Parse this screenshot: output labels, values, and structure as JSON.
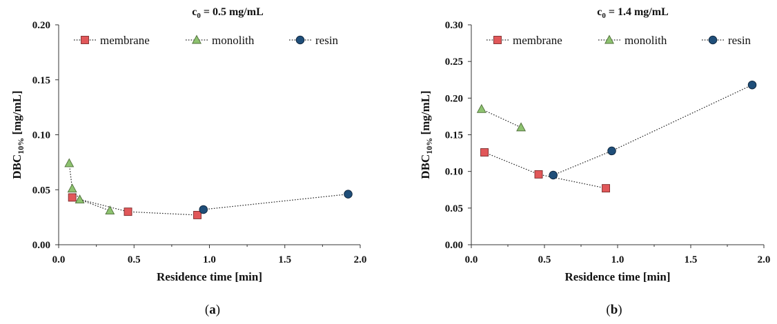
{
  "chart_data": [
    {
      "type": "scatter",
      "panel_label": "a",
      "title_var": "c",
      "title_sub": "0",
      "title_rest": " = 0.5 mg/mL",
      "ylabel_main": "DBC",
      "ylabel_sub": "10%",
      "ylabel_rest": " [mg/mL]",
      "xlabel": "Residence time [min]",
      "xlim": [
        0,
        2.0
      ],
      "ylim": [
        0,
        0.2
      ],
      "xticks": [
        "0.0",
        "0.5",
        "1.0",
        "1.5",
        "2.0"
      ],
      "yticks": [
        "0.00",
        "0.05",
        "0.10",
        "0.15",
        "0.20"
      ],
      "grid": false,
      "legend_position": "top",
      "series": [
        {
          "name": "membrane",
          "marker": "square",
          "color": "#e15759",
          "x": [
            0.09,
            0.46,
            0.92
          ],
          "y": [
            0.043,
            0.03,
            0.027
          ]
        },
        {
          "name": "monolith",
          "marker": "triangle",
          "color": "#8dc26f",
          "x": [
            0.07,
            0.09,
            0.14,
            0.34
          ],
          "y": [
            0.074,
            0.051,
            0.041,
            0.031
          ]
        },
        {
          "name": "resin",
          "marker": "circle",
          "color": "#1f4e79",
          "x": [
            0.96,
            1.92
          ],
          "y": [
            0.032,
            0.046
          ]
        }
      ]
    },
    {
      "type": "scatter",
      "panel_label": "b",
      "title_var": "c",
      "title_sub": "0",
      "title_rest": " = 1.4 mg/mL",
      "ylabel_main": "DBC",
      "ylabel_sub": "10%",
      "ylabel_rest": " [mg/mL]",
      "xlabel": "Residence time [min]",
      "xlim": [
        0,
        2.0
      ],
      "ylim": [
        0,
        0.3
      ],
      "xticks": [
        "0.0",
        "0.5",
        "1.0",
        "1.5",
        "2.0"
      ],
      "yticks": [
        "0.00",
        "0.05",
        "0.10",
        "0.15",
        "0.20",
        "0.25",
        "0.30"
      ],
      "grid": false,
      "legend_position": "top",
      "series": [
        {
          "name": "membrane",
          "marker": "square",
          "color": "#e15759",
          "x": [
            0.09,
            0.46,
            0.92
          ],
          "y": [
            0.126,
            0.096,
            0.077
          ]
        },
        {
          "name": "monolith",
          "marker": "triangle",
          "color": "#8dc26f",
          "x": [
            0.07,
            0.34
          ],
          "y": [
            0.185,
            0.16
          ]
        },
        {
          "name": "resin",
          "marker": "circle",
          "color": "#1f4e79",
          "x": [
            0.56,
            0.96,
            1.92
          ],
          "y": [
            0.095,
            0.128,
            0.218
          ]
        }
      ]
    }
  ]
}
